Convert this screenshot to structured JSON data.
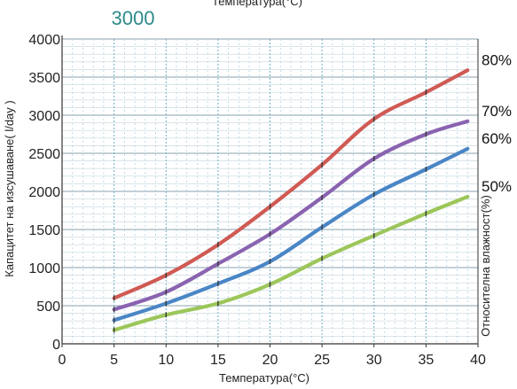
{
  "chart_data": {
    "type": "line",
    "model_label": "3000",
    "title": "Температура(°C)",
    "xlabel": "Температура(°C)",
    "ylabel": "Капацитет на изсушаване( l/day )",
    "y2label": "Относителна влажност(%)",
    "xlim": [
      0,
      40
    ],
    "ylim": [
      0,
      4000
    ],
    "xticks": [
      0,
      5,
      10,
      15,
      20,
      25,
      30,
      35,
      40
    ],
    "yticks": [
      0,
      500,
      1000,
      1500,
      2000,
      2500,
      3000,
      3500,
      4000
    ],
    "grid": true,
    "series": [
      {
        "name": "80%",
        "color": "#d05a54",
        "x": [
          5,
          10,
          15,
          20,
          25,
          30,
          35,
          39
        ],
        "values": [
          600,
          900,
          1300,
          1800,
          2350,
          2950,
          3300,
          3590
        ]
      },
      {
        "name": "70%",
        "color": "#8a63b0",
        "x": [
          5,
          10,
          15,
          20,
          25,
          30,
          35,
          39
        ],
        "values": [
          450,
          680,
          1050,
          1440,
          1920,
          2430,
          2750,
          2920
        ]
      },
      {
        "name": "60%",
        "color": "#4a86c6",
        "x": [
          5,
          10,
          15,
          20,
          25,
          30,
          35,
          39
        ],
        "values": [
          310,
          530,
          790,
          1080,
          1530,
          1960,
          2290,
          2560
        ]
      },
      {
        "name": "50%",
        "color": "#9cc65a",
        "x": [
          5,
          10,
          15,
          20,
          25,
          30,
          35,
          39
        ],
        "values": [
          180,
          380,
          530,
          780,
          1120,
          1420,
          1710,
          1930
        ]
      }
    ]
  }
}
